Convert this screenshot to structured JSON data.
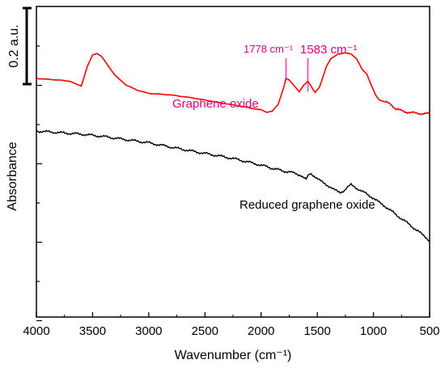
{
  "chart_data": {
    "type": "line",
    "title": "",
    "xlabel": "Wavenumber (cm⁻¹)",
    "ylabel": "Absorbance",
    "xlim": [
      4000,
      500
    ],
    "x_reversed": true,
    "x_ticks": [
      4000,
      3500,
      3000,
      2500,
      2000,
      1500,
      1000,
      500
    ],
    "y_tick_labels": "none",
    "grid": false,
    "scale_bar_label": "0.2 a.u.",
    "series": [
      {
        "name": "Graphene oxide",
        "color": "#ff0000",
        "points": [
          [
            4000,
            3.02
          ],
          [
            3800,
            2.98
          ],
          [
            3700,
            2.95
          ],
          [
            3650,
            2.88
          ],
          [
            3600,
            2.83
          ],
          [
            3550,
            3.3
          ],
          [
            3500,
            3.62
          ],
          [
            3460,
            3.66
          ],
          [
            3420,
            3.58
          ],
          [
            3350,
            3.3
          ],
          [
            3300,
            3.1
          ],
          [
            3200,
            2.85
          ],
          [
            3100,
            2.72
          ],
          [
            3000,
            2.64
          ],
          [
            2800,
            2.6
          ],
          [
            2600,
            2.52
          ],
          [
            2400,
            2.42
          ],
          [
            2200,
            2.32
          ],
          [
            2000,
            2.22
          ],
          [
            1950,
            2.16
          ],
          [
            1900,
            2.19
          ],
          [
            1850,
            2.35
          ],
          [
            1800,
            2.78
          ],
          [
            1778,
            3.02
          ],
          [
            1750,
            2.98
          ],
          [
            1700,
            2.82
          ],
          [
            1660,
            2.68
          ],
          [
            1620,
            2.85
          ],
          [
            1583,
            2.95
          ],
          [
            1560,
            2.85
          ],
          [
            1520,
            2.66
          ],
          [
            1480,
            2.8
          ],
          [
            1420,
            3.32
          ],
          [
            1380,
            3.52
          ],
          [
            1320,
            3.64
          ],
          [
            1250,
            3.67
          ],
          [
            1200,
            3.65
          ],
          [
            1150,
            3.52
          ],
          [
            1100,
            3.25
          ],
          [
            1060,
            3.14
          ],
          [
            1020,
            2.85
          ],
          [
            980,
            2.6
          ],
          [
            950,
            2.48
          ],
          [
            900,
            2.42
          ],
          [
            850,
            2.38
          ],
          [
            800,
            2.24
          ],
          [
            700,
            2.16
          ],
          [
            600,
            2.13
          ],
          [
            500,
            2.12
          ]
        ]
      },
      {
        "name": "Reduced graphene oxide",
        "color": "#000000",
        "points": [
          [
            4000,
            1.68
          ],
          [
            3800,
            1.64
          ],
          [
            3600,
            1.6
          ],
          [
            3400,
            1.54
          ],
          [
            3200,
            1.46
          ],
          [
            3000,
            1.38
          ],
          [
            2800,
            1.27
          ],
          [
            2600,
            1.16
          ],
          [
            2400,
            1.06
          ],
          [
            2200,
            0.95
          ],
          [
            2000,
            0.81
          ],
          [
            1900,
            0.73
          ],
          [
            1800,
            0.66
          ],
          [
            1750,
            0.64
          ],
          [
            1700,
            0.6
          ],
          [
            1650,
            0.56
          ],
          [
            1600,
            0.44
          ],
          [
            1580,
            0.54
          ],
          [
            1560,
            0.6
          ],
          [
            1520,
            0.52
          ],
          [
            1480,
            0.42
          ],
          [
            1420,
            0.32
          ],
          [
            1380,
            0.24
          ],
          [
            1350,
            0.18
          ],
          [
            1300,
            0.12
          ],
          [
            1260,
            0.16
          ],
          [
            1230,
            0.24
          ],
          [
            1200,
            0.31
          ],
          [
            1170,
            0.26
          ],
          [
            1100,
            0.14
          ],
          [
            1000,
            -0.03
          ],
          [
            950,
            -0.14
          ],
          [
            900,
            -0.23
          ],
          [
            800,
            -0.45
          ],
          [
            700,
            -0.66
          ],
          [
            600,
            -0.88
          ],
          [
            520,
            -1.06
          ],
          [
            500,
            -1.12
          ]
        ]
      }
    ],
    "annotations": [
      {
        "id": "peak1778",
        "label": "1778 cm⁻¹",
        "x": 1778
      },
      {
        "id": "peak1583",
        "label": "1583 cm⁻¹",
        "x": 1583
      }
    ]
  }
}
